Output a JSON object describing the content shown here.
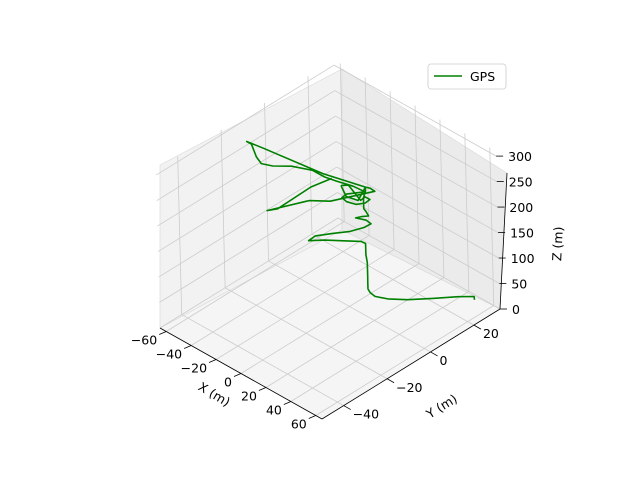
{
  "chart_data": {
    "type": "line",
    "projection": "3d",
    "title": "",
    "xlabel": "X (m)",
    "ylabel": "Y (m)",
    "zlabel": "Z (m)",
    "xlim": [
      -65,
      65
    ],
    "ylim": [
      -50,
      32
    ],
    "zlim": [
      0,
      310
    ],
    "x_ticks": [
      "−60",
      "−40",
      "−20",
      "0",
      "20",
      "40",
      "60"
    ],
    "y_ticks": [
      "−40",
      "−20",
      "0",
      "20"
    ],
    "z_ticks": [
      "0",
      "50",
      "100",
      "150",
      "200",
      "250",
      "300"
    ],
    "grid": true,
    "legend": {
      "location": "upper right",
      "entries": [
        "GPS"
      ]
    },
    "series": [
      {
        "name": "GPS",
        "color": "#008000",
        "points": [
          [
            48,
            30,
            0
          ],
          [
            46,
            31,
            1
          ],
          [
            40,
            27,
            3
          ],
          [
            32,
            20,
            7
          ],
          [
            24,
            13,
            12
          ],
          [
            17,
            8,
            17
          ],
          [
            12,
            5,
            23
          ],
          [
            10,
            4,
            30
          ],
          [
            10,
            3,
            40
          ],
          [
            10,
            3,
            52
          ],
          [
            10,
            3,
            65
          ],
          [
            10,
            3,
            78
          ],
          [
            10,
            3,
            92
          ],
          [
            9,
            3,
            106
          ],
          [
            9,
            3,
            118
          ],
          [
            9,
            3,
            128
          ],
          [
            7,
            2,
            132
          ],
          [
            0,
            -2,
            134
          ],
          [
            -8,
            -6,
            135
          ],
          [
            -14,
            -10,
            136
          ],
          [
            -12,
            -8,
            143
          ],
          [
            -5,
            -4,
            147
          ],
          [
            2,
            0,
            150
          ],
          [
            8,
            3,
            158
          ],
          [
            12,
            4,
            168
          ],
          [
            10,
            3,
            175
          ],
          [
            5,
            1,
            178
          ],
          [
            8,
            2,
            182
          ],
          [
            12,
            3,
            186
          ],
          [
            10,
            3,
            192
          ],
          [
            10,
            2,
            200
          ],
          [
            10,
            2,
            210
          ],
          [
            10,
            2,
            222
          ],
          [
            10,
            3,
            232
          ],
          [
            10,
            3,
            240
          ],
          [
            -10,
            -5,
            260
          ],
          [
            -40,
            -15,
            295
          ],
          [
            -48,
            -18,
            305
          ],
          [
            -46,
            -17,
            300
          ],
          [
            -44,
            -16,
            275
          ],
          [
            -42,
            -15,
            262
          ],
          [
            -38,
            -12,
            255
          ],
          [
            -30,
            -8,
            255
          ],
          [
            -20,
            -4,
            250
          ],
          [
            -14,
            -2,
            240
          ],
          [
            -8,
            0,
            235
          ],
          [
            0,
            3,
            228
          ],
          [
            6,
            5,
            220
          ],
          [
            -2,
            1,
            215
          ],
          [
            -4,
            0,
            208
          ],
          [
            -2,
            1,
            200
          ],
          [
            2,
            3,
            195
          ],
          [
            6,
            5,
            198
          ],
          [
            8,
            6,
            205
          ],
          [
            6,
            5,
            210
          ],
          [
            4,
            4,
            203
          ],
          [
            -2,
            2,
            230
          ],
          [
            -4,
            0,
            232
          ],
          [
            -6,
            1,
            225
          ],
          [
            -4,
            2,
            205
          ],
          [
            2,
            4,
            200
          ],
          [
            10,
            3,
            240
          ],
          [
            12,
            4,
            238
          ],
          [
            14,
            5,
            232
          ],
          [
            -10,
            -2,
            198
          ],
          [
            -20,
            -6,
            196
          ],
          [
            -22,
            -6,
            192
          ],
          [
            -40,
            -14,
            170
          ],
          [
            -35,
            -12,
            175
          ],
          [
            -20,
            -5,
            220
          ],
          [
            -10,
            -1,
            240
          ]
        ]
      }
    ]
  }
}
